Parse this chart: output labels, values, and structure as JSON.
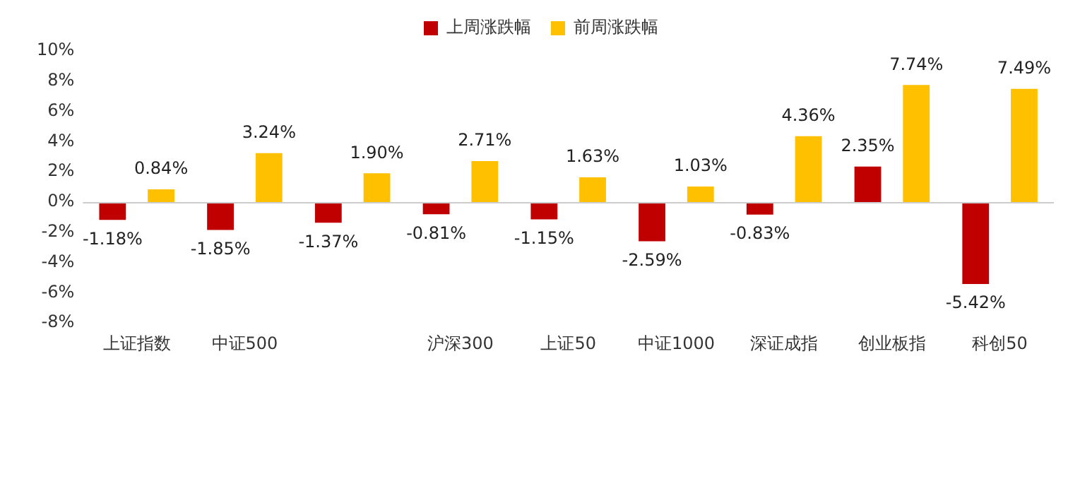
{
  "chart_data": {
    "type": "bar",
    "categories": [
      "上证指数",
      "中证500",
      null,
      "沪深300",
      "上证50",
      "中证1000",
      "深证成指",
      "创业板指",
      "科创50"
    ],
    "series": [
      {
        "name": "上周涨跌幅",
        "color": "#c00000",
        "values": [
          -1.18,
          -1.85,
          -1.37,
          -0.81,
          -1.15,
          -2.59,
          -0.83,
          2.35,
          -5.42
        ],
        "value_labels": [
          "-1.18%",
          "-1.85%",
          "-1.37%",
          "-0.81%",
          "-1.15%",
          "-2.59%",
          "-0.83%",
          "2.35%",
          "-5.42%"
        ]
      },
      {
        "name": "前周涨跌幅",
        "color": "#ffc000",
        "values": [
          0.84,
          3.24,
          1.9,
          2.71,
          1.63,
          1.03,
          4.36,
          7.74,
          7.49
        ],
        "value_labels": [
          "0.84%",
          "3.24%",
          "1.90%",
          "2.71%",
          "1.63%",
          "1.03%",
          "4.36%",
          "7.74%",
          "7.49%"
        ]
      }
    ],
    "ylim": [
      -8,
      10
    ],
    "yticks": [
      {
        "value": -8,
        "label": "-8%"
      },
      {
        "value": -6,
        "label": "-6%"
      },
      {
        "value": -4,
        "label": "-4%"
      },
      {
        "value": -2,
        "label": "-2%"
      },
      {
        "value": 0,
        "label": "0%"
      },
      {
        "value": 2,
        "label": "2%"
      },
      {
        "value": 4,
        "label": "4%"
      },
      {
        "value": 6,
        "label": "6%"
      },
      {
        "value": 8,
        "label": "8%"
      },
      {
        "value": 10,
        "label": "10%"
      }
    ],
    "legend": "top"
  }
}
